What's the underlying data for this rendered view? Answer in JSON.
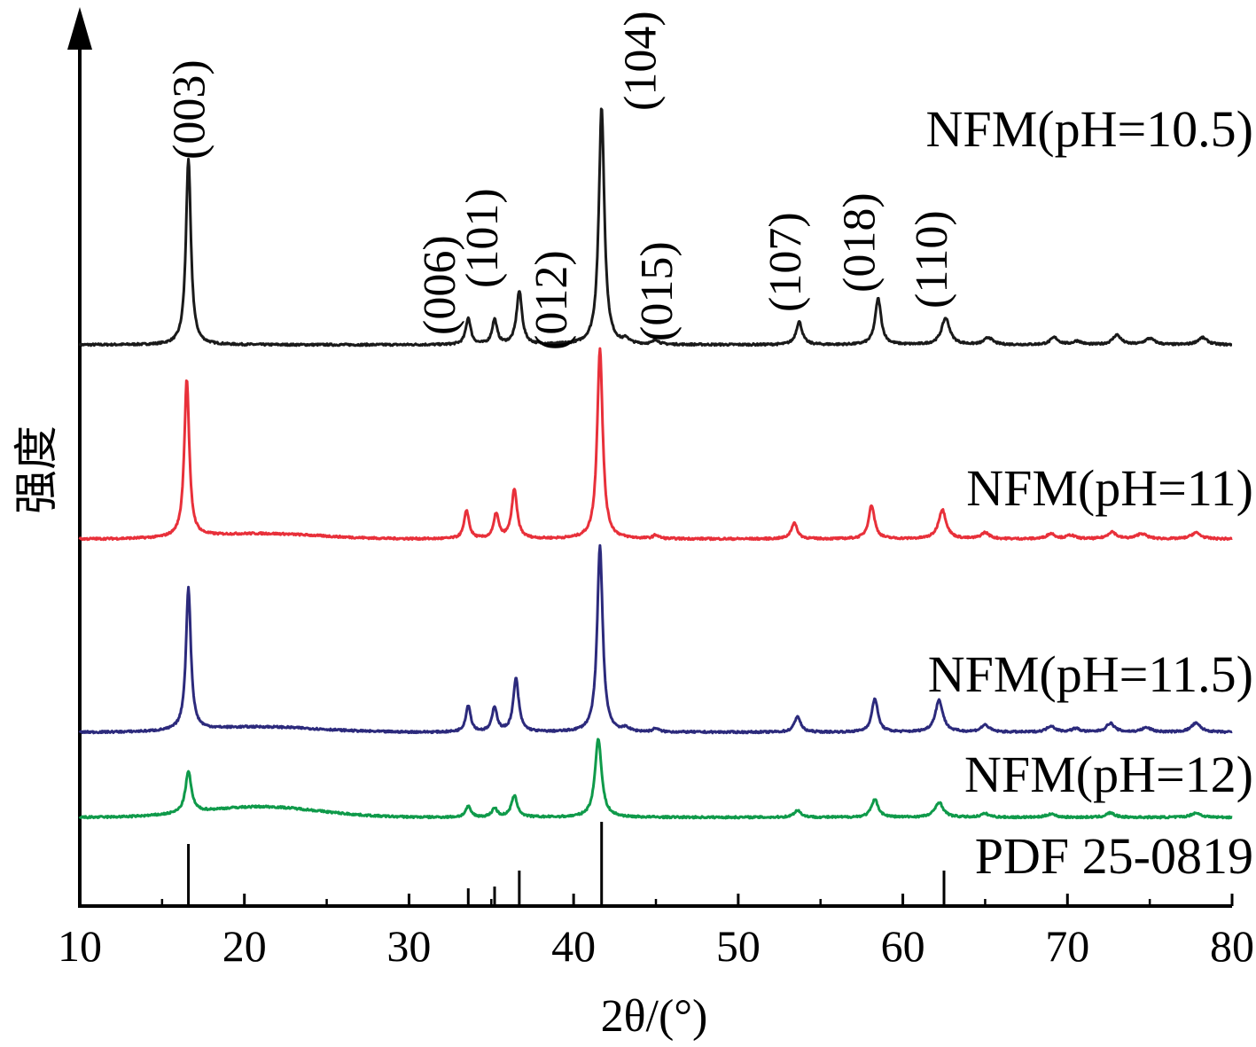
{
  "chart_data": {
    "type": "line",
    "xlabel": "2θ/(°)",
    "ylabel": "强度",
    "xlim": [
      10,
      80
    ],
    "x_ticks": [
      "10",
      "20",
      "30",
      "40",
      "50",
      "60",
      "70",
      "80"
    ],
    "y_ticks": [],
    "grid": false,
    "legend": "labels printed to the right above each curve",
    "series": [
      {
        "name": "NFM(pH=10.5)",
        "color": "#1a1a1a",
        "offset": 389,
        "baseline_slope": 0,
        "peaks": [
          [
            16.6,
            210,
            0.18
          ],
          [
            33.6,
            30,
            0.18
          ],
          [
            35.2,
            28,
            0.18
          ],
          [
            36.7,
            60,
            0.2
          ],
          [
            41.7,
            268,
            0.2
          ],
          [
            43.2,
            5,
            0.2
          ],
          [
            45.0,
            5,
            0.2
          ],
          [
            53.7,
            26,
            0.22
          ],
          [
            58.5,
            52,
            0.22
          ],
          [
            62.6,
            30,
            0.3
          ],
          [
            65.2,
            8,
            0.3
          ],
          [
            69.2,
            8,
            0.3
          ],
          [
            70.6,
            4,
            0.3
          ],
          [
            73.0,
            11,
            0.3
          ],
          [
            75.0,
            7,
            0.35
          ],
          [
            78.2,
            8,
            0.35
          ]
        ],
        "hump": [
          0,
          21,
          6
        ]
      },
      {
        "name": "NFM(pH=11)",
        "color": "#e8303a",
        "offset": 608,
        "baseline_slope": 0,
        "peaks": [
          [
            16.5,
            178,
            0.18
          ],
          [
            33.5,
            32,
            0.18
          ],
          [
            35.3,
            28,
            0.18
          ],
          [
            36.4,
            55,
            0.2
          ],
          [
            41.6,
            215,
            0.2
          ],
          [
            45.0,
            4,
            0.2
          ],
          [
            53.4,
            18,
            0.22
          ],
          [
            58.1,
            38,
            0.22
          ],
          [
            62.4,
            33,
            0.28
          ],
          [
            65.0,
            7,
            0.3
          ],
          [
            69.0,
            6,
            0.3
          ],
          [
            70.2,
            4,
            0.3
          ],
          [
            72.7,
            8,
            0.3
          ],
          [
            74.5,
            6,
            0.35
          ],
          [
            77.8,
            7,
            0.35
          ]
        ],
        "hump": [
          6,
          21,
          5
        ]
      },
      {
        "name": "NFM(pH=11.5)",
        "color": "#2c2a7c",
        "offset": 826,
        "baseline_slope": 0,
        "peaks": [
          [
            16.6,
            160,
            0.18
          ],
          [
            33.6,
            30,
            0.18
          ],
          [
            35.2,
            28,
            0.18
          ],
          [
            36.5,
            60,
            0.2
          ],
          [
            41.6,
            210,
            0.2
          ],
          [
            43.2,
            4,
            0.2
          ],
          [
            45.0,
            4,
            0.2
          ],
          [
            53.6,
            18,
            0.22
          ],
          [
            58.3,
            38,
            0.22
          ],
          [
            62.2,
            36,
            0.28
          ],
          [
            65.0,
            8,
            0.3
          ],
          [
            69.0,
            7,
            0.3
          ],
          [
            70.5,
            4,
            0.3
          ],
          [
            72.6,
            10,
            0.3
          ],
          [
            74.8,
            5,
            0.35
          ],
          [
            77.8,
            10,
            0.35
          ]
        ],
        "hump": [
          6,
          21,
          5
        ]
      },
      {
        "name": "NFM(pH=12)",
        "color": "#0f9a4a",
        "offset": 922,
        "baseline_slope": 0,
        "peaks": [
          [
            16.6,
            46,
            0.22
          ],
          [
            33.6,
            12,
            0.2
          ],
          [
            35.2,
            10,
            0.2
          ],
          [
            36.4,
            24,
            0.22
          ],
          [
            41.5,
            89,
            0.24
          ],
          [
            53.6,
            8,
            0.25
          ],
          [
            58.3,
            20,
            0.25
          ],
          [
            62.2,
            17,
            0.3
          ],
          [
            65.0,
            4,
            0.3
          ],
          [
            69.0,
            4,
            0.3
          ],
          [
            72.6,
            5,
            0.3
          ],
          [
            77.8,
            5,
            0.35
          ]
        ],
        "hump": [
          12,
          21,
          5
        ]
      }
    ],
    "reference": {
      "name": "PDF 25-0819",
      "lines": [
        [
          16.6,
          70
        ],
        [
          33.6,
          20
        ],
        [
          35.2,
          22
        ],
        [
          36.7,
          40
        ],
        [
          41.7,
          95
        ],
        [
          62.5,
          40
        ]
      ]
    },
    "annotations": [
      {
        "text": "(003)",
        "x": 16.6
      },
      {
        "text": "(006)",
        "x": 31.8
      },
      {
        "text": "(101)",
        "x": 34.4
      },
      {
        "text": "(012)",
        "x": 38.6
      },
      {
        "text": "(104)",
        "x": 44.0
      },
      {
        "text": "(015)",
        "x": 45.0
      },
      {
        "text": "(107)",
        "x": 52.8
      },
      {
        "text": "(018)",
        "x": 57.3
      },
      {
        "text": "(110)",
        "x": 61.7
      }
    ]
  }
}
